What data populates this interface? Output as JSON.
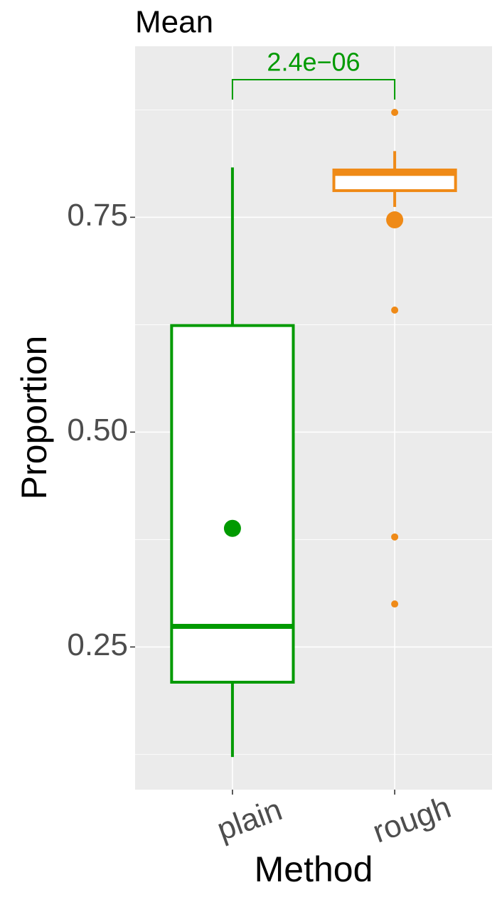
{
  "chart_data": {
    "type": "boxplot",
    "title": "Mean",
    "x_label": "Method",
    "y_label": "Proportion",
    "categories": [
      "plain",
      "rough"
    ],
    "boxes": [
      {
        "color": "#009a00",
        "min": 0.122,
        "q1": 0.209,
        "median": 0.274,
        "q3": 0.624,
        "max": 0.808,
        "mean": 0.388,
        "outliers": []
      },
      {
        "color": "#ef8a17",
        "min": 0.762,
        "q1": 0.781,
        "median": 0.801,
        "q3": 0.805,
        "max": 0.827,
        "mean": 0.747,
        "outliers": [
          0.872,
          0.642,
          0.378,
          0.3
        ]
      }
    ],
    "annotation": {
      "label": "2.4e−06",
      "color": "#009a00"
    },
    "ylim": [
      0.084,
      0.949
    ],
    "yticks": [
      {
        "value": 0.25,
        "label": "0.25"
      },
      {
        "value": 0.5,
        "label": "0.50"
      },
      {
        "value": 0.75,
        "label": "0.75"
      }
    ],
    "minor_yticks": [
      0.125,
      0.375,
      0.625,
      0.875
    ],
    "grid": true
  }
}
